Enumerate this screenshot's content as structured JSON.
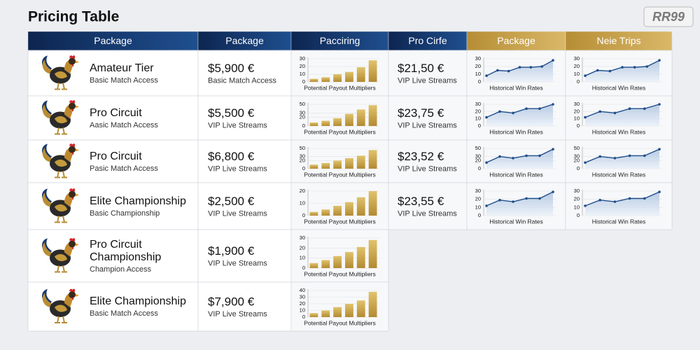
{
  "title": "Pricing Table",
  "logo": "RR99",
  "headers": [
    "Package",
    "Package",
    "Pacciring",
    "Pro Cirfe",
    "Package",
    "Neie Trips"
  ],
  "rows": [
    {
      "name": "Amateur Tier",
      "sub": "Basic Match Access",
      "price": "$5,900 €",
      "price_sub": "Basic Match Access",
      "bar_chart": {
        "type": "bar",
        "ylim": [
          0,
          30
        ],
        "yticks": [
          0,
          10,
          20,
          30
        ],
        "values": [
          4,
          6,
          10,
          13,
          19,
          28
        ],
        "caption": "Potential Payout Multipliers"
      },
      "price2": "$21,50 €",
      "price2_sub": "VIP Live Streams",
      "line_chart_1": {
        "type": "line",
        "ylim": [
          0,
          30
        ],
        "yticks": [
          0,
          10,
          20,
          30
        ],
        "values": [
          8,
          15,
          14,
          19,
          19,
          20,
          28
        ],
        "caption": "Historical Win Rates"
      },
      "line_chart_2": {
        "type": "line",
        "ylim": [
          0,
          30
        ],
        "yticks": [
          0,
          10,
          20,
          30
        ],
        "values": [
          8,
          15,
          14,
          19,
          19,
          20,
          28
        ],
        "caption": "Historical Win Rates"
      }
    },
    {
      "name": "Pro Circuit",
      "sub": "Aasic Match Access",
      "price": "$5,500 €",
      "price_sub": "VIP Live Streams",
      "bar_chart": {
        "type": "bar",
        "ylim": [
          0,
          50
        ],
        "yticks": [
          0,
          20,
          30,
          50
        ],
        "values": [
          8,
          12,
          18,
          28,
          38,
          48
        ],
        "caption": "Potential Payout Multipliers"
      },
      "price2": "$23,75 €",
      "price2_sub": "VIP Live Streams",
      "line_chart_1": {
        "type": "line",
        "ylim": [
          0,
          30
        ],
        "yticks": [
          0,
          10,
          20,
          30
        ],
        "values": [
          12,
          20,
          18,
          24,
          24,
          30
        ],
        "caption": "Historical Win Rates"
      },
      "line_chart_2": {
        "type": "line",
        "ylim": [
          0,
          30
        ],
        "yticks": [
          0,
          10,
          20,
          30
        ],
        "values": [
          12,
          20,
          18,
          24,
          24,
          30
        ],
        "caption": "Historical Win Rates"
      }
    },
    {
      "name": "Pro Circuit",
      "sub": "Pasic Match Access",
      "price": "$6,800 €",
      "price_sub": "VIP Live Streams",
      "bar_chart": {
        "type": "bar",
        "ylim": [
          0,
          50
        ],
        "yticks": [
          0,
          20,
          30,
          50
        ],
        "values": [
          10,
          14,
          20,
          26,
          32,
          46
        ],
        "caption": "Potential Payout Multipliers"
      },
      "price2": "$23,52 €",
      "price2_sub": "VIP Live Streams",
      "line_chart_1": {
        "type": "line",
        "ylim": [
          0,
          50
        ],
        "yticks": [
          0,
          20,
          30,
          50
        ],
        "values": [
          15,
          30,
          26,
          32,
          32,
          48
        ],
        "caption": "Historical Win Rates"
      },
      "line_chart_2": {
        "type": "line",
        "ylim": [
          0,
          50
        ],
        "yticks": [
          0,
          20,
          30,
          50
        ],
        "values": [
          15,
          30,
          26,
          32,
          32,
          48
        ],
        "caption": "Historical Win Rates"
      }
    },
    {
      "name": "Elite Championship",
      "sub": "Basic Championship",
      "price": "$2,500 €",
      "price_sub": "VIP Live Streams",
      "bar_chart": {
        "type": "bar",
        "ylim": [
          0,
          20
        ],
        "yticks": [
          0,
          10,
          20
        ],
        "values": [
          3,
          5,
          8,
          11,
          15,
          20
        ],
        "caption": "Potential Payout Multipliers"
      },
      "price2": "$23,55 €",
      "price2_sub": "VIP Live Streams",
      "line_chart_1": {
        "type": "line",
        "ylim": [
          0,
          30
        ],
        "yticks": [
          0,
          10,
          20,
          30
        ],
        "values": [
          12,
          19,
          17,
          21,
          21,
          29
        ],
        "caption": "Historical Win Rates"
      },
      "line_chart_2": {
        "type": "line",
        "ylim": [
          0,
          30
        ],
        "yticks": [
          0,
          10,
          20,
          30
        ],
        "values": [
          12,
          19,
          17,
          21,
          21,
          29
        ],
        "caption": "Historical Win Rates"
      }
    },
    {
      "name": "Pro Circuit Championship",
      "sub": "Champion Access",
      "price": "$1,900 €",
      "price_sub": "VIP Live Streams",
      "bar_chart": {
        "type": "bar",
        "ylim": [
          0,
          30
        ],
        "yticks": [
          0,
          10,
          20,
          30
        ],
        "values": [
          5,
          8,
          12,
          16,
          21,
          28
        ],
        "caption": "Potential Payout Multipliers"
      }
    },
    {
      "name": "Elite Championship",
      "sub": "Basic Match Access",
      "price": "$7,900 €",
      "price_sub": "VIP Live Streams",
      "bar_chart": {
        "type": "bar",
        "ylim": [
          0,
          40
        ],
        "yticks": [
          0,
          10,
          20,
          30,
          40
        ],
        "values": [
          6,
          10,
          15,
          20,
          25,
          38
        ],
        "caption": "Potential Payout Multipliers"
      }
    }
  ]
}
